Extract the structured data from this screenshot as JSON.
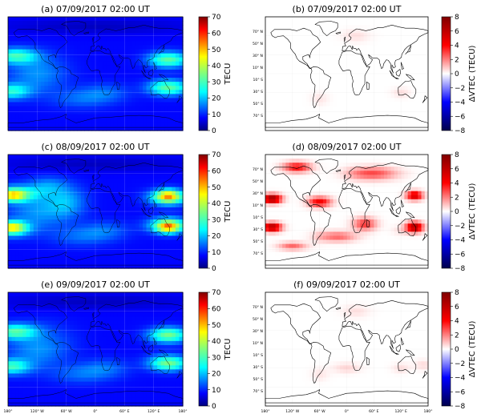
{
  "panels": [
    {
      "id": "a",
      "title": "(a) 07/09/2017 02:00 UT",
      "kind": "tec",
      "storm": 0.0
    },
    {
      "id": "b",
      "title": "(b) 07/09/2017 02:00 UT",
      "kind": "dtec",
      "storm": 0.0
    },
    {
      "id": "c",
      "title": "(c) 08/09/2017 02:00 UT",
      "kind": "tec",
      "storm": 1.0
    },
    {
      "id": "d",
      "title": "(d) 08/09/2017 02:00 UT",
      "kind": "dtec",
      "storm": 1.0
    },
    {
      "id": "e",
      "title": "(e) 09/09/2017 02:00 UT",
      "kind": "tec",
      "storm": 0.1
    },
    {
      "id": "f",
      "title": "(f) 09/09/2017 02:00 UT",
      "kind": "dtec",
      "storm": 0.1
    }
  ],
  "colorbars": {
    "tec": {
      "label": "TECU",
      "min": 0,
      "max": 70,
      "ticks": [
        "0",
        "10",
        "20",
        "30",
        "40",
        "50",
        "60",
        "70"
      ]
    },
    "dtec": {
      "label": "ΔVTEC (TECU)",
      "min": -8,
      "max": 8,
      "ticks": [
        "−8",
        "−6",
        "−4",
        "−2",
        "0",
        "2",
        "4",
        "6",
        "8"
      ]
    }
  },
  "lon_ticks": [
    "180°",
    "120° W",
    "60° W",
    "0°",
    "60° E",
    "120° E",
    "180°"
  ],
  "lat_ticks": [
    "70° N",
    "50° N",
    "30° N",
    "10° N",
    "10° S",
    "30° S",
    "50° S",
    "70° S"
  ],
  "chart_data": {
    "type": "heatmap",
    "x_label": "",
    "y_label": "",
    "xlim": [
      -180,
      180
    ],
    "ylim": [
      -90,
      90
    ],
    "panels": [
      {
        "title": "(a) 07/09/2017 02:00 UT",
        "variable": "TECU",
        "range": [
          0,
          70
        ]
      },
      {
        "title": "(b) 07/09/2017 02:00 UT",
        "variable": "ΔVTEC (TECU)",
        "range": [
          -8,
          8
        ]
      },
      {
        "title": "(c) 08/09/2017 02:00 UT",
        "variable": "TECU",
        "range": [
          0,
          70
        ]
      },
      {
        "title": "(d) 08/09/2017 02:00 UT",
        "variable": "ΔVTEC (TECU)",
        "range": [
          -8,
          8
        ]
      },
      {
        "title": "(e) 09/09/2017 02:00 UT",
        "variable": "TECU",
        "range": [
          0,
          70
        ]
      },
      {
        "title": "(f) 09/09/2017 02:00 UT",
        "variable": "ΔVTEC (TECU)",
        "range": [
          -8,
          8
        ]
      }
    ]
  }
}
